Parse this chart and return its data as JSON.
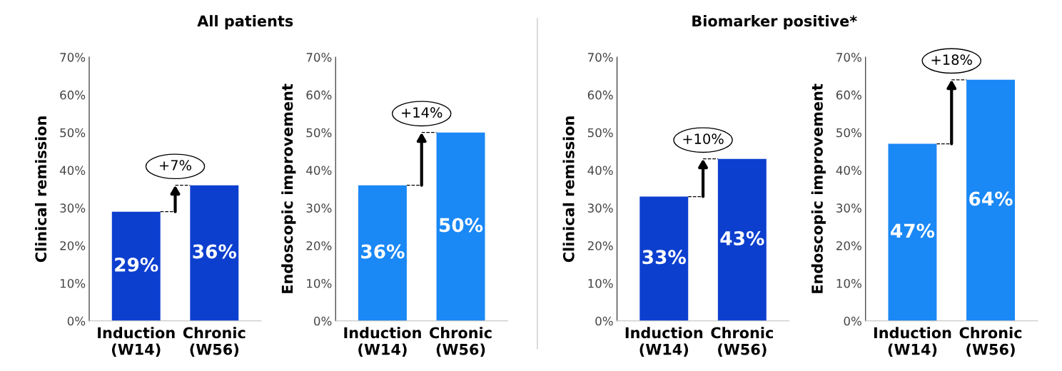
{
  "chart_data": [
    {
      "type": "bar",
      "title": "All patients",
      "ylabel": "Clinical remission",
      "categories": [
        "Induction\n(W14)",
        "Chronic\n(W56)"
      ],
      "values": [
        29,
        36
      ],
      "colors": [
        "#0d3fcf",
        "#0d3fcf"
      ],
      "data_labels": true,
      "value_labels": [
        "29%",
        "36%"
      ],
      "annotations": [
        "+7%"
      ],
      "ylim": [
        0,
        70
      ],
      "yticks": [
        {
          "value": 0,
          "label": "0%"
        },
        {
          "value": 10,
          "label": "10%"
        },
        {
          "value": 20,
          "label": "20%"
        },
        {
          "value": 30,
          "label": "30%"
        },
        {
          "value": 40,
          "label": "40%"
        },
        {
          "value": 50,
          "label": "50%"
        },
        {
          "value": 60,
          "label": "60%"
        },
        {
          "value": 70,
          "label": "70%"
        }
      ],
      "grid": false
    },
    {
      "type": "bar",
      "ylabel": "Endoscopic improvement",
      "categories": [
        "Induction\n(W14)",
        "Chronic\n(W56)"
      ],
      "values": [
        36,
        50
      ],
      "colors": [
        "#1a88f5",
        "#1a88f5"
      ],
      "data_labels": true,
      "value_labels": [
        "36%",
        "50%"
      ],
      "annotations": [
        "+14%"
      ],
      "ylim": [
        0,
        70
      ],
      "yticks": [
        {
          "value": 0,
          "label": "0%"
        },
        {
          "value": 10,
          "label": "10%"
        },
        {
          "value": 20,
          "label": "20%"
        },
        {
          "value": 30,
          "label": "30%"
        },
        {
          "value": 40,
          "label": "40%"
        },
        {
          "value": 50,
          "label": "50%"
        },
        {
          "value": 60,
          "label": "60%"
        },
        {
          "value": 70,
          "label": "70%"
        }
      ],
      "grid": false
    },
    {
      "type": "bar",
      "title": "Biomarker positive*",
      "ylabel": "Clinical remission",
      "categories": [
        "Induction\n(W14)",
        "Chronic\n(W56)"
      ],
      "values": [
        33,
        43
      ],
      "colors": [
        "#0d3fcf",
        "#0d3fcf"
      ],
      "data_labels": true,
      "value_labels": [
        "33%",
        "43%"
      ],
      "annotations": [
        "+10%"
      ],
      "ylim": [
        0,
        70
      ],
      "yticks": [
        {
          "value": 0,
          "label": "0%"
        },
        {
          "value": 10,
          "label": "10%"
        },
        {
          "value": 20,
          "label": "20%"
        },
        {
          "value": 30,
          "label": "30%"
        },
        {
          "value": 40,
          "label": "40%"
        },
        {
          "value": 50,
          "label": "50%"
        },
        {
          "value": 60,
          "label": "60%"
        },
        {
          "value": 70,
          "label": "70%"
        }
      ],
      "grid": false
    },
    {
      "type": "bar",
      "ylabel": "Endoscopic improvement",
      "categories": [
        "Induction\n(W14)",
        "Chronic\n(W56)"
      ],
      "values": [
        47,
        64
      ],
      "colors": [
        "#1a88f5",
        "#1a88f5"
      ],
      "data_labels": true,
      "value_labels": [
        "47%",
        "64%"
      ],
      "annotations": [
        "+18%"
      ],
      "ylim": [
        0,
        70
      ],
      "yticks": [
        {
          "value": 0,
          "label": "0%"
        },
        {
          "value": 10,
          "label": "10%"
        },
        {
          "value": 20,
          "label": "20%"
        },
        {
          "value": 30,
          "label": "30%"
        },
        {
          "value": 40,
          "label": "40%"
        },
        {
          "value": 50,
          "label": "50%"
        },
        {
          "value": 60,
          "label": "60%"
        },
        {
          "value": 70,
          "label": "70%"
        }
      ],
      "grid": false
    }
  ]
}
